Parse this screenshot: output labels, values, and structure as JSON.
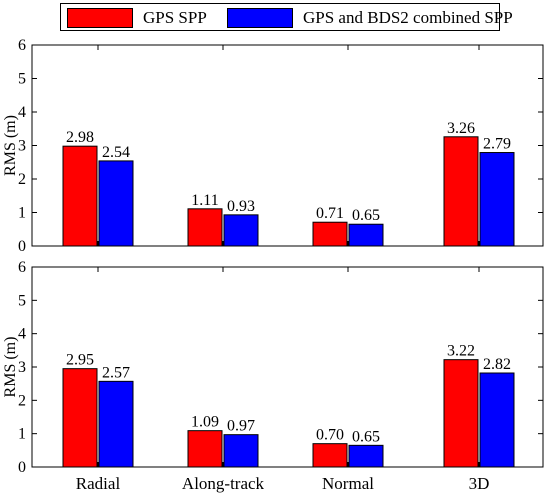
{
  "legend": {
    "items": [
      {
        "label": "GPS SPP",
        "color": "#ff0000"
      },
      {
        "label": "GPS and BDS2 combined SPP",
        "color": "#0000ff"
      }
    ]
  },
  "chart_data": [
    {
      "type": "bar",
      "categories": [
        "Radial",
        "Along-track",
        "Normal",
        "3D"
      ],
      "series": [
        {
          "name": "GPS SPP",
          "values": [
            2.98,
            1.11,
            0.71,
            3.26
          ],
          "color": "#ff0000"
        },
        {
          "name": "GPS and BDS2 combined SPP",
          "values": [
            2.54,
            0.93,
            0.65,
            2.79
          ],
          "color": "#0000ff"
        }
      ],
      "data_labels": [
        [
          "2.98",
          "1.11",
          "0.71",
          "3.26"
        ],
        [
          "2.54",
          "0.93",
          "0.65",
          "2.79"
        ]
      ],
      "ylabel": "RMS (m)",
      "ylim": [
        0,
        6
      ],
      "yticks": [
        "0",
        "1",
        "2",
        "3",
        "4",
        "5",
        "6"
      ],
      "grid": false,
      "show_category_labels": false
    },
    {
      "type": "bar",
      "categories": [
        "Radial",
        "Along-track",
        "Normal",
        "3D"
      ],
      "series": [
        {
          "name": "GPS SPP",
          "values": [
            2.95,
            1.09,
            0.7,
            3.22
          ],
          "color": "#ff0000"
        },
        {
          "name": "GPS and BDS2 combined SPP",
          "values": [
            2.57,
            0.97,
            0.65,
            2.82
          ],
          "color": "#0000ff"
        }
      ],
      "data_labels": [
        [
          "2.95",
          "1.09",
          "0.70",
          "3.22"
        ],
        [
          "2.57",
          "0.97",
          "0.65",
          "2.82"
        ]
      ],
      "ylabel": "RMS (m)",
      "ylim": [
        0,
        6
      ],
      "yticks": [
        "0",
        "1",
        "2",
        "3",
        "4",
        "5",
        "6"
      ],
      "grid": false,
      "show_category_labels": true
    }
  ]
}
